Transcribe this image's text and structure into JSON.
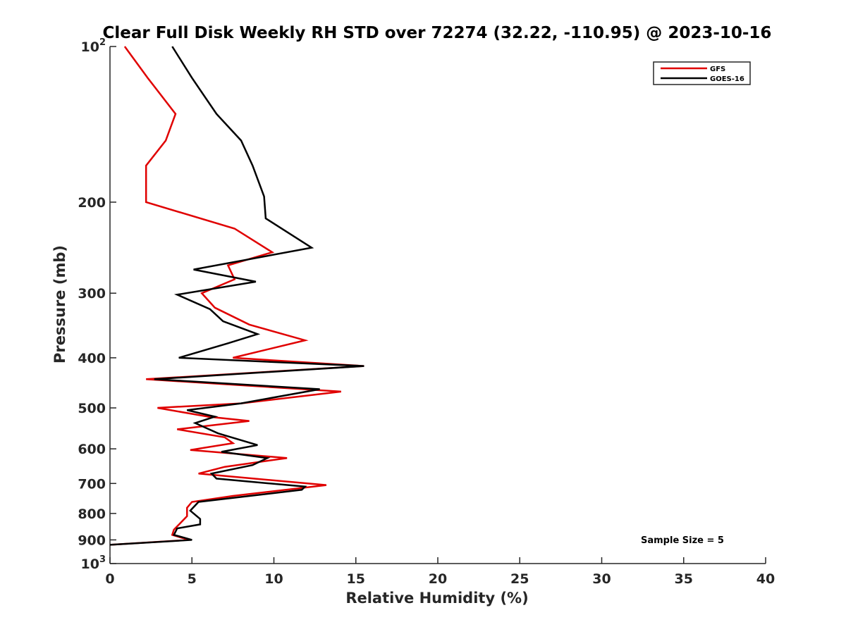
{
  "chart_data": {
    "type": "line",
    "title": "Clear Full Disk Weekly RH STD over 72274 (32.22, -110.95) @ 2023-10-16",
    "xlabel": "Relative Humidity (%)",
    "ylabel": "Pressure (mb)",
    "xlim": [
      0,
      40
    ],
    "ylim": [
      100,
      1000
    ],
    "yscale": "log",
    "y_reversed": true,
    "grid": false,
    "legend_position": "top-right",
    "x_ticks": [
      "0",
      "5",
      "10",
      "15",
      "20",
      "25",
      "30",
      "35",
      "40"
    ],
    "y_ticks": [
      {
        "value": 100,
        "base": "10",
        "exp": "2"
      },
      {
        "value": 200,
        "label": "200"
      },
      {
        "value": 300,
        "label": "300"
      },
      {
        "value": 400,
        "label": "400"
      },
      {
        "value": 500,
        "label": "500"
      },
      {
        "value": 600,
        "label": "600"
      },
      {
        "value": 700,
        "label": "700"
      },
      {
        "value": 800,
        "label": "800"
      },
      {
        "value": 900,
        "label": "900"
      },
      {
        "value": 1000,
        "base": "10",
        "exp": "3"
      }
    ],
    "annotation": "Sample Size = 5",
    "series": [
      {
        "name": "GFS",
        "color": "#e00000",
        "points": [
          [
            0.9,
            100
          ],
          [
            2.3,
            115
          ],
          [
            4.0,
            135
          ],
          [
            3.4,
            152
          ],
          [
            2.2,
            170
          ],
          [
            2.2,
            200
          ],
          [
            7.6,
            225
          ],
          [
            9.9,
            250
          ],
          [
            7.2,
            265
          ],
          [
            7.6,
            282
          ],
          [
            5.6,
            300
          ],
          [
            6.4,
            320
          ],
          [
            8.5,
            345
          ],
          [
            11.9,
            370
          ],
          [
            7.5,
            400
          ],
          [
            15.5,
            415
          ],
          [
            2.2,
            440
          ],
          [
            14.1,
            465
          ],
          [
            8.0,
            490
          ],
          [
            2.9,
            500
          ],
          [
            6.0,
            520
          ],
          [
            8.5,
            530
          ],
          [
            4.1,
            550
          ],
          [
            7.0,
            570
          ],
          [
            7.5,
            585
          ],
          [
            4.9,
            603
          ],
          [
            10.8,
            625
          ],
          [
            7.0,
            650
          ],
          [
            5.4,
            670
          ],
          [
            13.2,
            705
          ],
          [
            7.5,
            740
          ],
          [
            5.0,
            760
          ],
          [
            4.7,
            780
          ],
          [
            4.7,
            810
          ],
          [
            3.9,
            860
          ],
          [
            3.8,
            880
          ],
          [
            4.8,
            900
          ],
          [
            0.0,
            920
          ]
        ]
      },
      {
        "name": "GOES-16",
        "color": "#000000",
        "points": [
          [
            3.8,
            100
          ],
          [
            5.0,
            115
          ],
          [
            6.5,
            135
          ],
          [
            8.0,
            152
          ],
          [
            8.7,
            170
          ],
          [
            9.4,
            195
          ],
          [
            9.5,
            215
          ],
          [
            12.3,
            245
          ],
          [
            5.1,
            270
          ],
          [
            8.9,
            285
          ],
          [
            4.1,
            302
          ],
          [
            6.1,
            322
          ],
          [
            6.9,
            340
          ],
          [
            9.0,
            360
          ],
          [
            7.2,
            375
          ],
          [
            4.2,
            400
          ],
          [
            15.5,
            415
          ],
          [
            2.7,
            440
          ],
          [
            12.8,
            460
          ],
          [
            8.0,
            490
          ],
          [
            4.7,
            505
          ],
          [
            6.4,
            520
          ],
          [
            5.2,
            535
          ],
          [
            6.6,
            560
          ],
          [
            9.0,
            590
          ],
          [
            6.8,
            608
          ],
          [
            9.6,
            625
          ],
          [
            8.7,
            645
          ],
          [
            6.2,
            670
          ],
          [
            6.5,
            685
          ],
          [
            11.9,
            710
          ],
          [
            11.7,
            720
          ],
          [
            5.4,
            760
          ],
          [
            4.9,
            790
          ],
          [
            5.5,
            820
          ],
          [
            5.5,
            840
          ],
          [
            4.1,
            855
          ],
          [
            3.9,
            880
          ],
          [
            5.0,
            900
          ],
          [
            0.0,
            920
          ]
        ]
      }
    ]
  }
}
